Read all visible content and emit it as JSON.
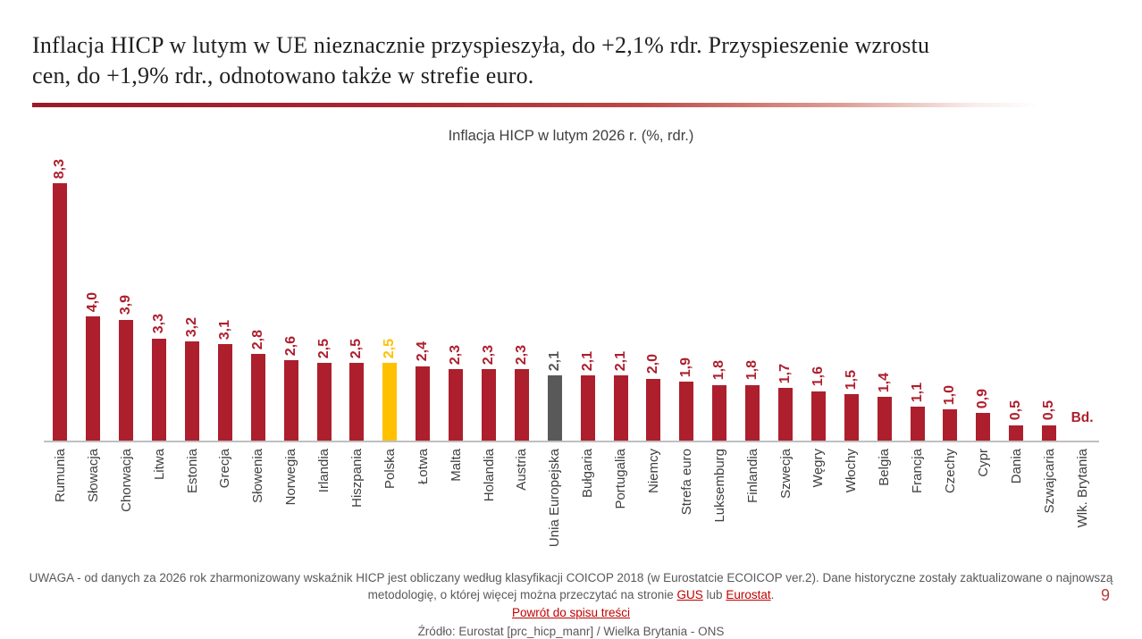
{
  "header": {
    "title_line1": "Inflacja HICP w lutym w UE nieznacznie przyspieszyła, do +2,1% rdr. Przyspieszenie wzrostu",
    "title_line2": "cen, do +1,9% rdr., odnotowano także w strefie euro."
  },
  "chart_data": {
    "type": "bar",
    "title": "Inflacja HICP w lutym 2026 r. (%, rdr.)",
    "categories": [
      "Rumunia",
      "Słowacja",
      "Chorwacja",
      "Litwa",
      "Estonia",
      "Grecja",
      "Słowenia",
      "Norwegia",
      "Irlandia",
      "Hiszpania",
      "Polska",
      "Łotwa",
      "Malta",
      "Holandia",
      "Austria",
      "Unia Europejska",
      "Bułgaria",
      "Portugalia",
      "Niemcy",
      "Strefa euro",
      "Luksemburg",
      "Finlandia",
      "Szwecja",
      "Węgry",
      "Włochy",
      "Belgia",
      "Francja",
      "Czechy",
      "Cypr",
      "Dania",
      "Szwajcaria",
      "Wlk. Brytania"
    ],
    "values": [
      8.3,
      4.0,
      3.9,
      3.3,
      3.2,
      3.1,
      2.8,
      2.6,
      2.5,
      2.5,
      2.5,
      2.4,
      2.3,
      2.3,
      2.3,
      2.1,
      2.1,
      2.1,
      2.0,
      1.9,
      1.8,
      1.8,
      1.7,
      1.6,
      1.5,
      1.4,
      1.1,
      1.0,
      0.9,
      0.5,
      0.5,
      null
    ],
    "value_labels": [
      "8,3",
      "4,0",
      "3,9",
      "3,3",
      "3,2",
      "3,1",
      "2,8",
      "2,6",
      "2,5",
      "2,5",
      "2,5",
      "2,4",
      "2,3",
      "2,3",
      "2,3",
      "2,1",
      "2,1",
      "2,1",
      "2,0",
      "1,9",
      "1,8",
      "1,8",
      "1,7",
      "1,6",
      "1,5",
      "1,4",
      "1,1",
      "1,0",
      "0,9",
      "0,5",
      "0,5",
      "Bd."
    ],
    "color_roles": [
      "default",
      "default",
      "default",
      "default",
      "default",
      "default",
      "default",
      "default",
      "default",
      "default",
      "poland",
      "default",
      "default",
      "default",
      "default",
      "eu",
      "default",
      "default",
      "default",
      "default",
      "default",
      "default",
      "default",
      "default",
      "default",
      "default",
      "default",
      "default",
      "default",
      "default",
      "default",
      "none"
    ],
    "palette": {
      "default": "#ad1f2d",
      "poland": "#ffc000",
      "eu": "#595959",
      "axis": "#bfbfbf",
      "category_label_text": "#404040"
    },
    "no_data_label": "Bd.",
    "ylim": [
      0,
      9.2
    ],
    "grid": false,
    "legend": false,
    "value_label_rotation": 90,
    "category_label_rotation": 90
  },
  "footer": {
    "note_part1": "UWAGA - od danych za 2026 rok zharmonizowany wskaźnik HICP jest obliczany według klasyfikacji COICOP 2018 (w Eurostatcie ECOICOP ver.2). Dane historyczne zostały zaktualizowane o najnowszą metodologię, o której więcej można przeczytać na stronie ",
    "gus_link": "GUS",
    "note_part2": " lub ",
    "eurostat_link": "Eurostat",
    "note_part3": ".",
    "back_link": "Powrót do spisu treści",
    "source": "Źródło: Eurostat [prc_hicp_manr] / Wielka Brytania - ONS"
  },
  "page_number": "9"
}
